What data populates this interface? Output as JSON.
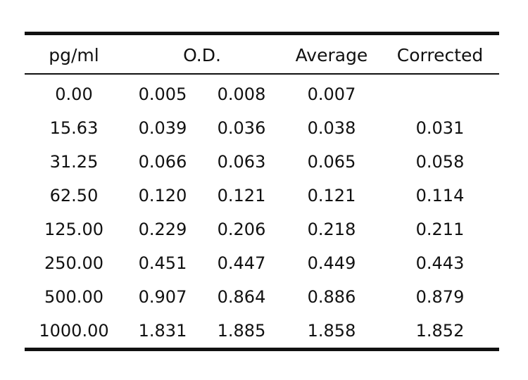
{
  "table": {
    "headers": {
      "conc": "pg/ml",
      "od": "O.D.",
      "average": "Average",
      "corrected": "Corrected"
    },
    "rows": [
      {
        "conc": "0.00",
        "od1": "0.005",
        "od2": "0.008",
        "average": "0.007",
        "corrected": ""
      },
      {
        "conc": "15.63",
        "od1": "0.039",
        "od2": "0.036",
        "average": "0.038",
        "corrected": "0.031"
      },
      {
        "conc": "31.25",
        "od1": "0.066",
        "od2": "0.063",
        "average": "0.065",
        "corrected": "0.058"
      },
      {
        "conc": "62.50",
        "od1": "0.120",
        "od2": "0.121",
        "average": "0.121",
        "corrected": "0.114"
      },
      {
        "conc": "125.00",
        "od1": "0.229",
        "od2": "0.206",
        "average": "0.218",
        "corrected": "0.211"
      },
      {
        "conc": "250.00",
        "od1": "0.451",
        "od2": "0.447",
        "average": "0.449",
        "corrected": "0.443"
      },
      {
        "conc": "500.00",
        "od1": "0.907",
        "od2": "0.864",
        "average": "0.886",
        "corrected": "0.879"
      },
      {
        "conc": "1000.00",
        "od1": "1.831",
        "od2": "1.885",
        "average": "1.858",
        "corrected": "1.852"
      }
    ]
  }
}
